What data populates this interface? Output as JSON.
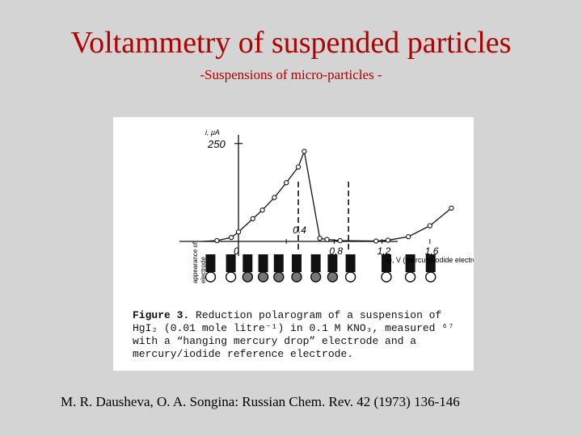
{
  "slide": {
    "title": "Voltammetry of suspended particles",
    "subtitle": "-Suspensions of micro-particles -",
    "citation": "M. R. Dausheva, O. A. Songina: Russian Chem. Rev. 42 (1973) 136-146"
  },
  "figure": {
    "caption_label": "Figure 3.",
    "caption_text": "Reduction polarogram of a suspension of HgI₂ (0.01 mole litre⁻¹) in 0.1 M KNO₃, measured ⁶⁷ with a “hanging mercury drop” electrode and a mercury/iodide reference electrode.",
    "appearance_label_line1": "appearance of",
    "appearance_label_line2": "electrode"
  },
  "chart_data": {
    "type": "scatter",
    "xlabel": "-φ, V (mercury/iodide electrode)",
    "ylabel": "i, μA",
    "y_tick_labels": [
      "250"
    ],
    "x_tick_labels": [
      "0",
      "0.4",
      "0.8",
      "1.2",
      "1.6"
    ],
    "xlim": [
      -0.3,
      2.0
    ],
    "ylim": [
      -30,
      300
    ],
    "series": [
      {
        "values": [
          [
            -0.18,
            2
          ],
          [
            -0.06,
            10
          ],
          [
            0.0,
            24
          ],
          [
            0.12,
            58
          ],
          [
            0.2,
            80
          ],
          [
            0.3,
            112
          ],
          [
            0.4,
            150
          ],
          [
            0.5,
            190
          ],
          [
            0.55,
            230
          ],
          [
            0.68,
            8
          ],
          [
            0.74,
            5
          ],
          [
            0.85,
            2
          ],
          [
            1.15,
            1
          ],
          [
            1.25,
            3
          ],
          [
            1.42,
            12
          ],
          [
            1.6,
            40
          ],
          [
            1.78,
            85
          ]
        ],
        "line": "smooth-with-drop"
      }
    ],
    "dashed_markers": [
      0.5,
      0.92
    ]
  }
}
